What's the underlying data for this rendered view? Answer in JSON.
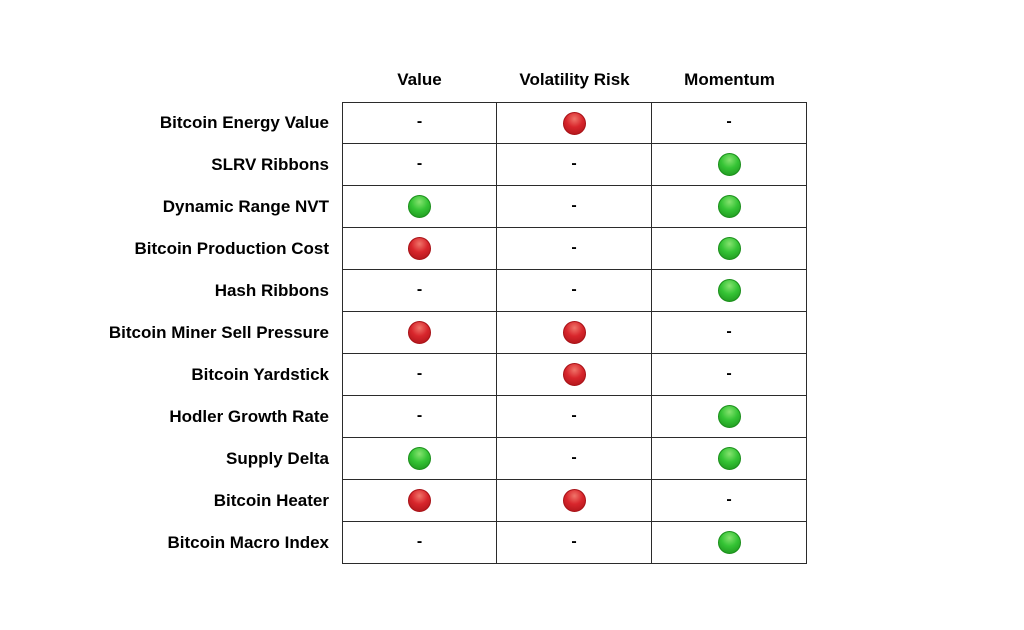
{
  "chart_data": {
    "type": "table",
    "columns": [
      "Value",
      "Volatility Risk",
      "Momentum"
    ],
    "rows": [
      {
        "label": "Bitcoin Energy Value",
        "cells": [
          "dash",
          "red",
          "dash"
        ]
      },
      {
        "label": "SLRV Ribbons",
        "cells": [
          "dash",
          "dash",
          "green"
        ]
      },
      {
        "label": "Dynamic Range NVT",
        "cells": [
          "green",
          "dash",
          "green"
        ]
      },
      {
        "label": "Bitcoin Production Cost",
        "cells": [
          "red",
          "dash",
          "green"
        ]
      },
      {
        "label": "Hash Ribbons",
        "cells": [
          "dash",
          "dash",
          "green"
        ]
      },
      {
        "label": "Bitcoin Miner Sell Pressure",
        "cells": [
          "red",
          "red",
          "dash"
        ]
      },
      {
        "label": "Bitcoin Yardstick",
        "cells": [
          "dash",
          "red",
          "dash"
        ]
      },
      {
        "label": "Hodler Growth Rate",
        "cells": [
          "dash",
          "dash",
          "green"
        ]
      },
      {
        "label": "Supply Delta",
        "cells": [
          "green",
          "dash",
          "green"
        ]
      },
      {
        "label": "Bitcoin Heater",
        "cells": [
          "red",
          "red",
          "dash"
        ]
      },
      {
        "label": "Bitcoin Macro Index",
        "cells": [
          "dash",
          "dash",
          "green"
        ]
      }
    ],
    "cell_glyphs": {
      "dash": "-"
    },
    "colors": {
      "red": "#d8262c",
      "red_highlight": "#f0756a",
      "red_dark": "#a81217",
      "green": "#35c435",
      "green_highlight": "#86e270",
      "green_dark": "#1b8f1b",
      "border": "#2b2b2b",
      "text": "#000000"
    },
    "legend_position": "none",
    "grid": true
  }
}
